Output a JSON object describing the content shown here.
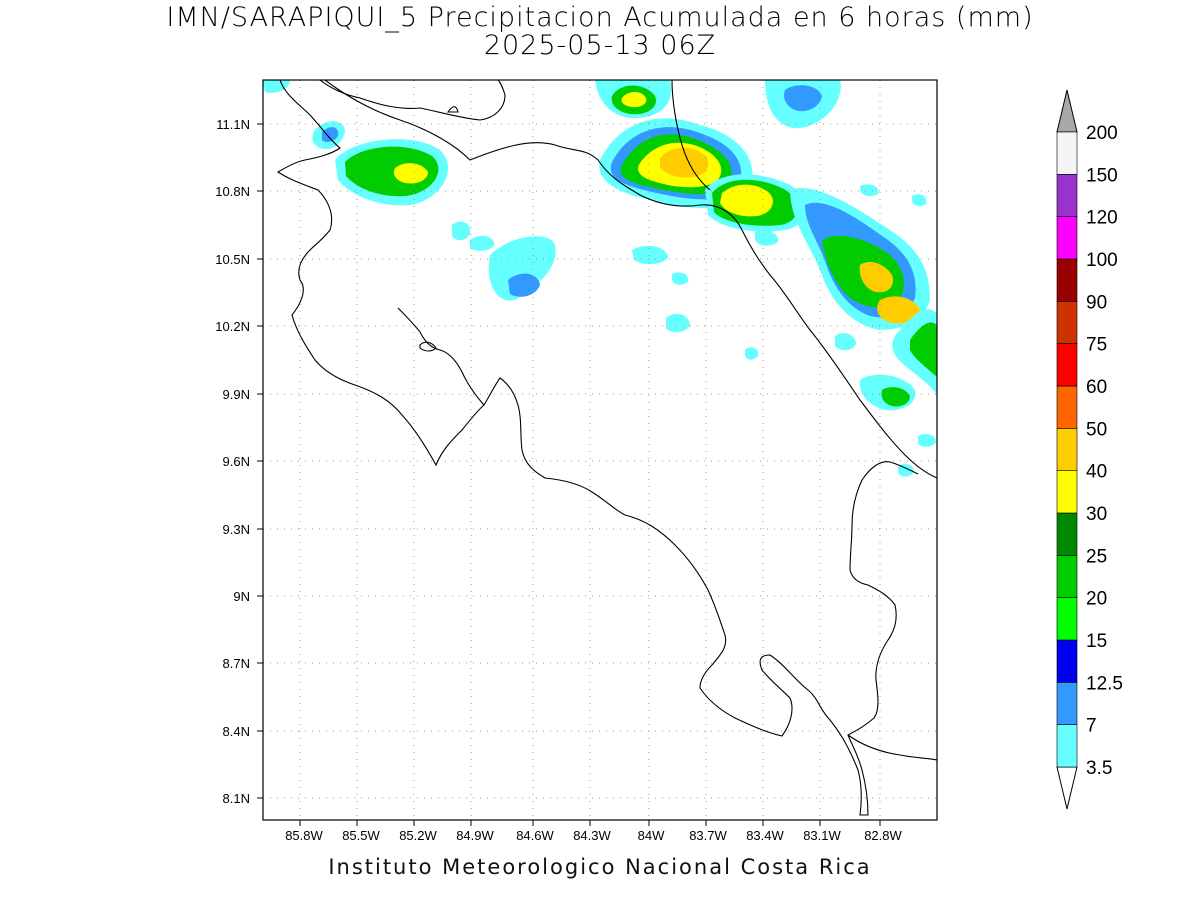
{
  "header": {
    "title": "IMN/SARAPIQUI_5 Precipitacion Acumulada en 6 horas (mm)",
    "subtitle": "2025-05-13 06Z"
  },
  "footer": {
    "credit": "Instituto Meteorologico Nacional Costa Rica"
  },
  "map": {
    "x_ticks": [
      "85.8W",
      "85.5W",
      "85.2W",
      "84.9W",
      "84.6W",
      "84.3W",
      "84W",
      "83.7W",
      "83.4W",
      "83.1W",
      "82.8W"
    ],
    "y_ticks": [
      "11.1N",
      "10.8N",
      "10.5N",
      "10.2N",
      "9.9N",
      "9.6N",
      "9.3N",
      "9N",
      "8.7N",
      "8.4N",
      "8.1N"
    ],
    "grid": true
  },
  "colorbar": {
    "labels": [
      "3.5",
      "7",
      "12.5",
      "15",
      "20",
      "25",
      "30",
      "40",
      "50",
      "60",
      "75",
      "90",
      "100",
      "120",
      "150",
      "200"
    ],
    "colors": [
      "#66ffff",
      "#3399ff",
      "#0000ee",
      "#00ff00",
      "#00cc00",
      "#008800",
      "#ffff00",
      "#ffcc00",
      "#ff6600",
      "#ff0000",
      "#cc3300",
      "#990000",
      "#ff00ff",
      "#9933cc",
      "#f5f5f5",
      "#a8a8a8"
    ]
  }
}
